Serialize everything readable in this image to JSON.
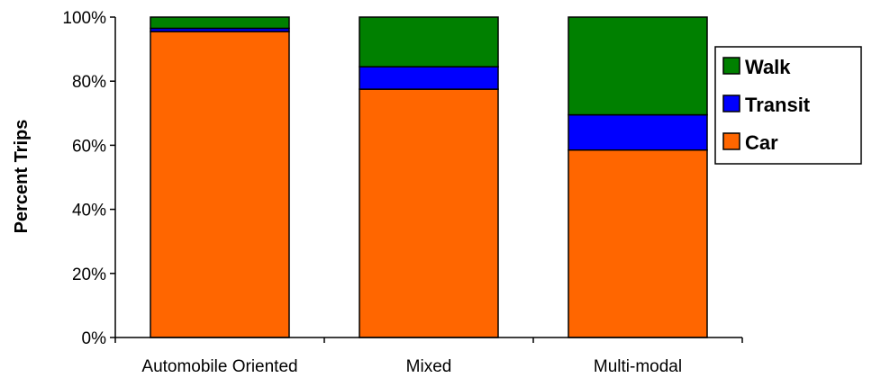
{
  "chart_data": {
    "type": "bar",
    "stacked": true,
    "categories": [
      "Automobile Oriented",
      "Mixed",
      "Multi-modal"
    ],
    "series": [
      {
        "name": "Car",
        "color": "#ff6600",
        "values": [
          95.5,
          77.5,
          58.5
        ]
      },
      {
        "name": "Transit",
        "color": "#0000ff",
        "values": [
          1,
          7,
          11
        ]
      },
      {
        "name": "Walk",
        "color": "#008000",
        "values": [
          3.5,
          15.5,
          30.5
        ]
      }
    ],
    "legend_order": [
      "Walk",
      "Transit",
      "Car"
    ],
    "legend_position": "right",
    "ylabel": "Percent Trips",
    "ylim": [
      0,
      100
    ],
    "yticks": [
      "0%",
      "20%",
      "40%",
      "60%",
      "80%",
      "100%"
    ],
    "grid": false
  }
}
